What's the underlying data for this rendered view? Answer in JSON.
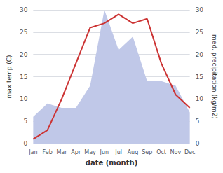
{
  "chart_data": {
    "type": "line",
    "xlabel": "date (month)",
    "ylabel": "max temp (C)",
    "y2label": "med. precipitation (kg/m2)",
    "categories": [
      "Jan",
      "Feb",
      "Mar",
      "Apr",
      "May",
      "Jun",
      "Jul",
      "Aug",
      "Sep",
      "Oct",
      "Nov",
      "Dec"
    ],
    "series": [
      {
        "type": "area",
        "axis": "y2",
        "color": "#c0c8e8",
        "values": [
          6,
          9,
          8,
          8,
          13,
          30,
          21,
          24,
          14,
          14,
          13,
          7
        ]
      },
      {
        "type": "line",
        "color": "#cc3333",
        "values": [
          1,
          3,
          10,
          18,
          26,
          27,
          29,
          27,
          28,
          18,
          11,
          8
        ]
      }
    ],
    "ylim": [
      0,
      30
    ],
    "yticks": [
      0,
      5,
      10,
      15,
      20,
      25,
      30
    ],
    "y2lim": [
      0,
      30
    ],
    "y2ticks": [
      0,
      5,
      10,
      15,
      20,
      25,
      30
    ],
    "grid": true
  }
}
